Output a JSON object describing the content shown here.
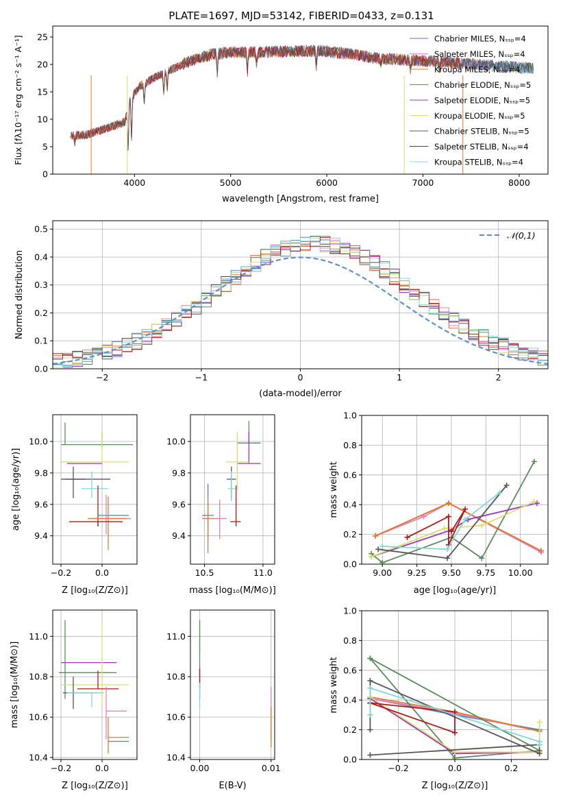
{
  "figure_title": "PLATE=1697, MJD=53142, FIBERID=0433, z=0.131",
  "colors": {
    "chabrier_miles": "#4c7fb8",
    "salpeter_miles": "#e57fbf",
    "kroupa_miles": "#e8782a",
    "chabrier_elodie": "#5a8c5a",
    "salpeter_elodie": "#9b30c8",
    "kroupa_elodie": "#d8e06a",
    "chabrier_stelib": "#555555",
    "salpeter_stelib": "#b01818",
    "kroupa_stelib": "#7fd8d8",
    "normal_curve": "#5b8fd6",
    "grid": "#b0b0b0"
  },
  "chart_data": [
    {
      "type": "line",
      "title": "PLATE=1697, MJD=53142, FIBERID=0433, z=0.131",
      "xlabel": "wavelength [Angstrom, rest frame]",
      "ylabel": "Flux [fλ10⁻¹⁷ erg cm⁻² s⁻¹ A⁻¹]",
      "xlim": [
        3150,
        8300
      ],
      "ylim": [
        0,
        27
      ],
      "xticks": [
        "4000",
        "5000",
        "6000",
        "7000",
        "8000"
      ],
      "yticks": [
        "0",
        "5",
        "10",
        "15",
        "20",
        "25"
      ],
      "grid": false,
      "legend_position": "top-right",
      "legend": [
        "Chabrier MILES, N_SSP=4",
        "Salpeter MILES, N_SSP=4",
        "Kroupa MILES, N_SSP=4",
        "Chabrier ELODIE, N_SSP=5",
        "Salpeter ELODIE, N_SSP=5",
        "Kroupa ELODIE, N_SSP=5",
        "Chabrier STELIB, N_SSP=5",
        "Salpeter STELIB, N_SSP=4",
        "Kroupa STELIB, N_SSP=4"
      ],
      "continuum": [
        [
          3350,
          7.0
        ],
        [
          3500,
          7.2
        ],
        [
          3700,
          8.3
        ],
        [
          3900,
          9.5
        ],
        [
          3950,
          13.5
        ],
        [
          4050,
          16.0
        ],
        [
          4200,
          17.5
        ],
        [
          4400,
          19.2
        ],
        [
          4600,
          20.8
        ],
        [
          4800,
          21.8
        ],
        [
          5000,
          22.2
        ],
        [
          5300,
          22.2
        ],
        [
          5600,
          22.4
        ],
        [
          5900,
          22.5
        ],
        [
          6200,
          22.0
        ],
        [
          6500,
          21.2
        ],
        [
          6800,
          20.8
        ],
        [
          7100,
          20.6
        ],
        [
          7400,
          20.2
        ],
        [
          7700,
          19.8
        ],
        [
          8000,
          19.4
        ],
        [
          8150,
          19.3
        ]
      ],
      "absorption_dips": [
        [
          3380,
          5.8
        ],
        [
          3934,
          4.5
        ],
        [
          3969,
          6.5
        ],
        [
          4101,
          13.0
        ],
        [
          4304,
          15.0
        ],
        [
          4340,
          15.5
        ],
        [
          4861,
          18.5
        ],
        [
          5175,
          18.8
        ],
        [
          5270,
          20.0
        ],
        [
          5890,
          19.5
        ],
        [
          6563,
          20.0
        ],
        [
          6870,
          19.0
        ],
        [
          7170,
          19.0
        ]
      ]
    },
    {
      "type": "step",
      "xlabel": "(data-model)/error",
      "ylabel": "Normed distribution",
      "xlim": [
        -2.5,
        2.5
      ],
      "ylim": [
        0,
        0.53
      ],
      "xticks": [
        "−2",
        "−1",
        "0",
        "1",
        "2"
      ],
      "yticks": [
        "0.0",
        "0.1",
        "0.2",
        "0.3",
        "0.4",
        "0.5"
      ],
      "grid": true,
      "legend_position": "top-right",
      "legend": [
        "𝒩(0,1)"
      ],
      "bin_width": 0.1,
      "bin_start": -2.5,
      "envelope_mean": 0.15,
      "envelope_sigma": 1.0
    },
    {
      "type": "errorbar",
      "xlabel": "Z [log₁₀(Z/Z⊙)]",
      "ylabel": "age  [log₁₀(age/yr)]",
      "xlim": [
        -0.24,
        0.17
      ],
      "ylim": [
        9.22,
        10.17
      ],
      "xticks": [
        "−0.2",
        "0.0"
      ],
      "yticks": [
        "9.4",
        "9.6",
        "9.8",
        "10.0"
      ],
      "grid": true,
      "points": [
        {
          "x": 0.0,
          "y": 9.98,
          "xerr": [
            0.2,
            0.15
          ],
          "yerr": [
            0.02,
            0.08
          ],
          "color": "chabrier_elodie"
        },
        {
          "x": -0.18,
          "y": 9.98,
          "xerr": [
            0.0,
            0.0
          ],
          "yerr": [
            0.0,
            0.14
          ],
          "color": "chabrier_elodie"
        },
        {
          "x": 0.0,
          "y": 9.87,
          "xerr": [
            0.2,
            0.13
          ],
          "yerr": [
            0.0,
            0.2
          ],
          "color": "kroupa_elodie"
        },
        {
          "x": -0.05,
          "y": 9.86,
          "xerr": [
            0.12,
            0.05
          ],
          "yerr": [
            0.0,
            0.0
          ],
          "color": "salpeter_elodie"
        },
        {
          "x": -0.14,
          "y": 9.76,
          "xerr": [
            0.06,
            0.06
          ],
          "yerr": [
            0.12,
            0.08
          ],
          "color": "chabrier_stelib"
        },
        {
          "x": -0.06,
          "y": 9.76,
          "xerr": [
            0.12,
            0.1
          ],
          "yerr": [
            0.0,
            0.0
          ],
          "color": "chabrier_stelib"
        },
        {
          "x": -0.05,
          "y": 9.7,
          "xerr": [
            0.05,
            0.08
          ],
          "yerr": [
            0.06,
            0.11
          ],
          "color": "kroupa_stelib"
        },
        {
          "x": -0.02,
          "y": 9.7,
          "xerr": [
            0.0,
            0.0
          ],
          "yerr": [
            0.24,
            0.02
          ],
          "color": "salpeter_stelib"
        },
        {
          "x": 0.03,
          "y": 9.53,
          "xerr": [
            0.05,
            0.1
          ],
          "yerr": [
            0.0,
            0.0
          ],
          "color": "chabrier_miles"
        },
        {
          "x": 0.02,
          "y": 9.51,
          "xerr": [
            0.05,
            0.12
          ],
          "yerr": [
            0.1,
            0.15
          ],
          "color": "salpeter_miles"
        },
        {
          "x": 0.03,
          "y": 9.51,
          "xerr": [
            0.1,
            0.09
          ],
          "yerr": [
            0.2,
            0.14
          ],
          "color": "kroupa_miles"
        },
        {
          "x": -0.02,
          "y": 9.49,
          "xerr": [
            0.14,
            0.12
          ],
          "yerr": [
            0.03,
            0.0
          ],
          "color": "salpeter_stelib"
        }
      ]
    },
    {
      "type": "errorbar",
      "xlabel": "mass [log₁₀(M/M⊙)]",
      "xlim": [
        10.38,
        11.1
      ],
      "ylim": [
        9.22,
        10.17
      ],
      "xticks": [
        "10.5",
        "11.0"
      ],
      "yticks": [
        "9.4",
        "9.6",
        "9.8",
        "10.0"
      ],
      "grid": true,
      "points": [
        {
          "x": 10.88,
          "y": 9.99,
          "xerr": [
            0.1,
            0.1
          ],
          "yerr": [
            0.0,
            0.14
          ],
          "color": "chabrier_elodie"
        },
        {
          "x": 10.88,
          "y": 9.86,
          "xerr": [
            0.1,
            0.1
          ],
          "yerr": [
            0.0,
            0.2
          ],
          "color": "salpeter_elodie"
        },
        {
          "x": 10.78,
          "y": 9.87,
          "xerr": [
            0.1,
            0.1
          ],
          "yerr": [
            0.18,
            0.19
          ],
          "color": "kroupa_elodie"
        },
        {
          "x": 10.73,
          "y": 9.76,
          "xerr": [
            0.04,
            0.04
          ],
          "yerr": [
            0.12,
            0.08
          ],
          "color": "chabrier_stelib"
        },
        {
          "x": 10.73,
          "y": 9.7,
          "xerr": [
            0.03,
            0.03
          ],
          "yerr": [
            0.08,
            0.11
          ],
          "color": "kroupa_stelib"
        },
        {
          "x": 10.77,
          "y": 9.49,
          "xerr": [
            0.05,
            0.04
          ],
          "yerr": [
            0.03,
            0.23
          ],
          "color": "salpeter_stelib"
        },
        {
          "x": 10.53,
          "y": 9.53,
          "xerr": [
            0.05,
            0.05
          ],
          "yerr": [
            0.16,
            0.2
          ],
          "color": "chabrier_miles"
        },
        {
          "x": 10.63,
          "y": 9.51,
          "xerr": [
            0.06,
            0.06
          ],
          "yerr": [
            0.13,
            0.12
          ],
          "color": "salpeter_miles"
        },
        {
          "x": 10.53,
          "y": 9.51,
          "xerr": [
            0.05,
            0.05
          ],
          "yerr": [
            0.22,
            0.13
          ],
          "color": "kroupa_miles"
        },
        {
          "x": 10.8,
          "y": 9.49,
          "xerr": [
            0.0,
            0.0
          ],
          "yerr": [
            0.0,
            0.0
          ],
          "color": "salpeter_stelib"
        }
      ]
    },
    {
      "type": "line",
      "xlabel": "age  [log₁₀(age/yr)]",
      "ylabel": "mass weight",
      "xlim": [
        8.85,
        10.2
      ],
      "ylim": [
        0,
        1.0
      ],
      "xticks": [
        "9.00",
        "9.25",
        "9.50",
        "9.75",
        "10.00"
      ],
      "yticks": [
        "0.0",
        "0.2",
        "0.4",
        "0.6",
        "0.8",
        "1.0"
      ],
      "grid": true,
      "series": [
        {
          "color": "chabrier_miles",
          "x": [
            8.95,
            9.48,
            10.15
          ],
          "y": [
            0.19,
            0.41,
            0.09
          ]
        },
        {
          "color": "salpeter_miles",
          "x": [
            8.95,
            9.3,
            9.48,
            10.15
          ],
          "y": [
            0.19,
            0.32,
            0.41,
            0.08
          ]
        },
        {
          "color": "kroupa_miles",
          "x": [
            8.95,
            9.48,
            10.15
          ],
          "y": [
            0.19,
            0.41,
            0.09
          ]
        },
        {
          "color": "chabrier_elodie",
          "x": [
            8.92,
            9.0,
            9.5,
            9.72,
            10.1
          ],
          "y": [
            0.07,
            0.01,
            0.18,
            0.04,
            0.69
          ]
        },
        {
          "color": "salpeter_elodie",
          "x": [
            8.92,
            9.5,
            9.62,
            10.12
          ],
          "y": [
            0.05,
            0.23,
            0.3,
            0.41
          ]
        },
        {
          "color": "kroupa_elodie",
          "x": [
            8.92,
            9.45,
            9.72,
            10.1
          ],
          "y": [
            0.05,
            0.24,
            0.26,
            0.42
          ]
        },
        {
          "color": "chabrier_stelib",
          "x": [
            8.97,
            9.47,
            9.9
          ],
          "y": [
            0.1,
            0.04,
            0.53
          ]
        },
        {
          "color": "salpeter_stelib",
          "x": [
            9.18,
            9.48,
            9.48,
            9.6,
            9.5
          ],
          "y": [
            0.18,
            0.32,
            0.13,
            0.37,
            0.22
          ]
        },
        {
          "color": "kroupa_stelib",
          "x": [
            9.0,
            9.47,
            9.6,
            9.85
          ],
          "y": [
            0.12,
            0.1,
            0.3,
            0.48
          ]
        }
      ]
    },
    {
      "type": "errorbar",
      "xlabel": "Z [log₁₀(Z/Z⊙)]",
      "ylabel": "mass [log₁₀(M/M⊙)]",
      "xlim": [
        -0.24,
        0.17
      ],
      "ylim": [
        10.39,
        11.13
      ],
      "xticks": [
        "−0.2",
        "0.0"
      ],
      "yticks": [
        "10.4",
        "10.6",
        "10.8",
        "11.0"
      ],
      "grid": true,
      "points": [
        {
          "x": -0.18,
          "y": 10.82,
          "xerr": [
            0.03,
            0.25
          ],
          "yerr": [
            0.13,
            0.26
          ],
          "color": "chabrier_elodie"
        },
        {
          "x": -0.05,
          "y": 10.87,
          "xerr": [
            0.15,
            0.12
          ],
          "yerr": [
            0.0,
            0.0
          ],
          "color": "salpeter_elodie"
        },
        {
          "x": 0.0,
          "y": 10.76,
          "xerr": [
            0.2,
            0.13
          ],
          "yerr": [
            0.11,
            0.3
          ],
          "color": "kroupa_elodie"
        },
        {
          "x": -0.07,
          "y": 10.72,
          "xerr": [
            0.12,
            0.05
          ],
          "yerr": [
            0.0,
            0.0
          ],
          "color": "chabrier_stelib"
        },
        {
          "x": -0.14,
          "y": 10.72,
          "xerr": [
            0.0,
            0.0
          ],
          "yerr": [
            0.08,
            0.08
          ],
          "color": "chabrier_stelib"
        },
        {
          "x": -0.05,
          "y": 10.72,
          "xerr": [
            0.12,
            0.06
          ],
          "yerr": [
            0.07,
            0.0
          ],
          "color": "kroupa_stelib"
        },
        {
          "x": -0.02,
          "y": 10.74,
          "xerr": [
            0.1,
            0.1
          ],
          "yerr": [
            0.0,
            0.09
          ],
          "color": "salpeter_stelib"
        },
        {
          "x": 0.02,
          "y": 10.63,
          "xerr": [
            0.0,
            0.1
          ],
          "yerr": [
            0.14,
            0.12
          ],
          "color": "salpeter_miles"
        },
        {
          "x": 0.03,
          "y": 10.5,
          "xerr": [
            0.0,
            0.1
          ],
          "yerr": [
            0.08,
            0.1
          ],
          "color": "kroupa_miles"
        },
        {
          "x": 0.03,
          "y": 10.48,
          "xerr": [
            0.0,
            0.1
          ],
          "yerr": [
            0.0,
            0.0
          ],
          "color": "chabrier_miles"
        }
      ]
    },
    {
      "type": "errorbar",
      "xlabel": "E(B-V)",
      "xlim": [
        -0.0013,
        0.0105
      ],
      "ylim": [
        10.39,
        11.13
      ],
      "xticks": [
        "0.00",
        "0.01"
      ],
      "yticks": [
        "10.4",
        "10.6",
        "10.8",
        "11.0"
      ],
      "grid": true,
      "points": [
        {
          "x": 0.0,
          "y": 11.0,
          "xerr": [
            0,
            0
          ],
          "yerr": [
            0.08,
            0.07
          ],
          "color": "kroupa_elodie"
        },
        {
          "x": 0.0,
          "y": 10.82,
          "xerr": [
            0,
            0
          ],
          "yerr": [
            0.13,
            0.26
          ],
          "color": "chabrier_elodie"
        },
        {
          "x": 0.0,
          "y": 10.79,
          "xerr": [
            0,
            0
          ],
          "yerr": [
            0.05,
            0.05
          ],
          "color": "salpeter_stelib"
        },
        {
          "x": 0.0,
          "y": 10.72,
          "xerr": [
            0,
            0
          ],
          "yerr": [
            0.07,
            0.05
          ],
          "color": "kroupa_stelib"
        },
        {
          "x": 0.01,
          "y": 10.63,
          "xerr": [
            0,
            0
          ],
          "yerr": [
            0.14,
            0.12
          ],
          "color": "salpeter_miles"
        },
        {
          "x": 0.01,
          "y": 10.55,
          "xerr": [
            0,
            0
          ],
          "yerr": [
            0.1,
            0.1
          ],
          "color": "kroupa_miles"
        }
      ]
    },
    {
      "type": "line",
      "xlabel": "Z [log₁₀(Z/Z⊙)]",
      "ylabel": "mass weight",
      "xlim": [
        -0.33,
        0.33
      ],
      "ylim": [
        0,
        1.0
      ],
      "xticks": [
        "−0.2",
        "0.0",
        "0.2"
      ],
      "yticks": [
        "0.0",
        "0.2",
        "0.4",
        "0.6",
        "0.8",
        "1.0"
      ],
      "grid": true,
      "series": [
        {
          "color": "chabrier_miles",
          "x": [
            -0.3,
            0.0,
            0.3
          ],
          "y": [
            0.41,
            0.3,
            0.2
          ]
        },
        {
          "color": "salpeter_miles",
          "x": [
            -0.3,
            0.0,
            0.3
          ],
          "y": [
            0.41,
            0.31,
            0.19
          ]
        },
        {
          "color": "kroupa_miles",
          "x": [
            -0.3,
            0.0,
            0.3
          ],
          "y": [
            0.42,
            0.32,
            0.19
          ]
        },
        {
          "color": "chabrier_elodie",
          "x": [
            -0.3,
            0.0,
            0.3,
            -0.3
          ],
          "y": [
            0.68,
            0.01,
            0.06,
            0.68
          ]
        },
        {
          "color": "salpeter_elodie",
          "x": [
            -0.3,
            0.0,
            0.3
          ],
          "y": [
            0.41,
            0.04,
            0.05
          ]
        },
        {
          "color": "kroupa_elodie",
          "x": [
            -0.3,
            0.0,
            0.3,
            0.3
          ],
          "y": [
            0.42,
            0.05,
            0.05,
            0.25
          ]
        },
        {
          "color": "chabrier_stelib",
          "x": [
            -0.3,
            0.3,
            0.3,
            -0.3,
            -0.3
          ],
          "y": [
            0.03,
            0.1,
            0.04,
            0.53,
            0.2
          ]
        },
        {
          "color": "salpeter_stelib",
          "x": [
            -0.3,
            0.0,
            0.0,
            -0.3
          ],
          "y": [
            0.38,
            0.18,
            0.32,
            0.38
          ]
        },
        {
          "color": "kroupa_stelib",
          "x": [
            -0.3,
            -0.3,
            0.3,
            0.3
          ],
          "y": [
            0.3,
            0.48,
            0.12,
            0.1
          ]
        }
      ]
    }
  ]
}
